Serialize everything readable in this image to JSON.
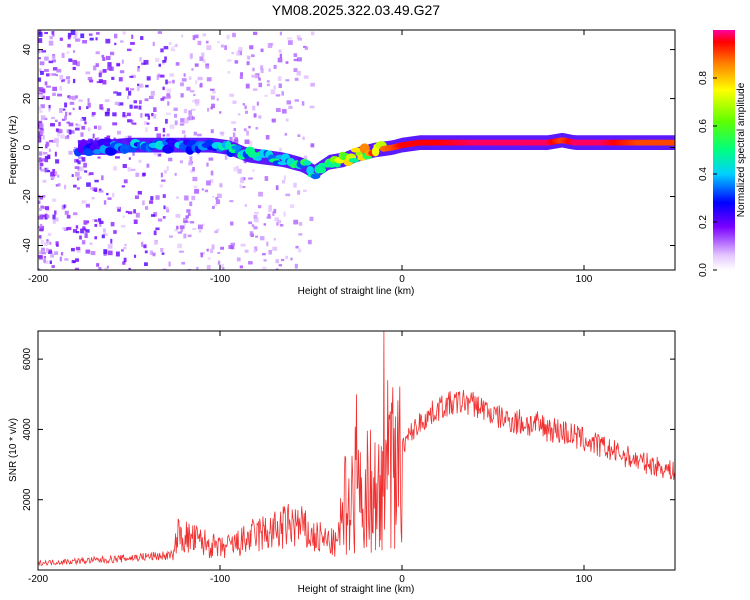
{
  "chart_data": [
    {
      "type": "heatmap",
      "title": "YM08.2025.322.03.49.G27",
      "xlabel": "Height of straight line (km)",
      "ylabel": "Frequency (Hz)",
      "xlim": [
        -200,
        150
      ],
      "ylim": [
        -50,
        48
      ],
      "xticks": [
        -200,
        -100,
        0,
        100
      ],
      "yticks": [
        -40,
        -20,
        0,
        20,
        40
      ],
      "colorbar": {
        "label": "Normalized spectral amplitude",
        "range": [
          0,
          1
        ],
        "ticks": [
          "0.0",
          "0.2",
          "0.4",
          "0.6",
          "0.8"
        ]
      },
      "ridge": {
        "x": [
          -178,
          -165,
          -150,
          -135,
          -120,
          -105,
          -95,
          -85,
          -75,
          -65,
          -55,
          -48,
          -40,
          -32,
          -25,
          -15,
          -5,
          0,
          10,
          20,
          40,
          60,
          80,
          88,
          95,
          110,
          130,
          150
        ],
        "freq": [
          0,
          0,
          1,
          1,
          1,
          1,
          0,
          -3,
          -4,
          -5,
          -7,
          -10,
          -6,
          -5,
          -3,
          -1,
          0,
          1,
          2,
          2,
          2,
          2,
          2,
          3,
          2,
          2,
          2,
          2
        ],
        "amplitude": [
          0.3,
          0.35,
          0.4,
          0.4,
          0.4,
          0.4,
          0.45,
          0.5,
          0.5,
          0.5,
          0.5,
          0.55,
          0.6,
          0.7,
          0.8,
          0.85,
          0.9,
          0.95,
          0.95,
          0.95,
          0.98,
          0.98,
          0.98,
          0.9,
          0.98,
          0.98,
          0.9,
          0.9
        ],
        "band_lower": -3,
        "band_upper": 3
      }
    },
    {
      "type": "line",
      "xlabel": "Height of straight line (km)",
      "ylabel": "SNR (10 * v/v)",
      "xlim": [
        -200,
        150
      ],
      "ylim": [
        0,
        6800
      ],
      "xticks": [
        -200,
        -100,
        0,
        100
      ],
      "yticks": [
        2000,
        4000,
        6000
      ],
      "color": "#f03030",
      "series": [
        {
          "name": "SNR",
          "x": [
            -200,
            -180,
            -160,
            -140,
            -125,
            -124,
            -110,
            -100,
            -90,
            -80,
            -70,
            -60,
            -55,
            -50,
            -45,
            -40,
            -35,
            -33,
            -30,
            -25,
            -20,
            -15,
            -12,
            -10,
            -8,
            -5,
            -3,
            0,
            5,
            10,
            15,
            20,
            25,
            30,
            35,
            40,
            45,
            50,
            60,
            70,
            80,
            90,
            100,
            110,
            120,
            130,
            140,
            150
          ],
          "y": [
            200,
            250,
            300,
            380,
            420,
            1000,
            800,
            600,
            750,
            1000,
            1100,
            1300,
            1200,
            950,
            900,
            800,
            700,
            1500,
            2000,
            2300,
            2200,
            2400,
            1800,
            2500,
            2800,
            2700,
            2600,
            3500,
            3900,
            4200,
            4400,
            4600,
            4700,
            4750,
            4800,
            4700,
            4600,
            4400,
            4250,
            4150,
            4050,
            3900,
            3700,
            3500,
            3300,
            3100,
            2950,
            2800
          ],
          "spikes": [
            {
              "x": -10,
              "y": 6800
            },
            {
              "x": -25,
              "y": 5000
            },
            {
              "x": -8,
              "y": 5400
            },
            {
              "x": -5,
              "y": 5200
            }
          ]
        }
      ]
    }
  ]
}
